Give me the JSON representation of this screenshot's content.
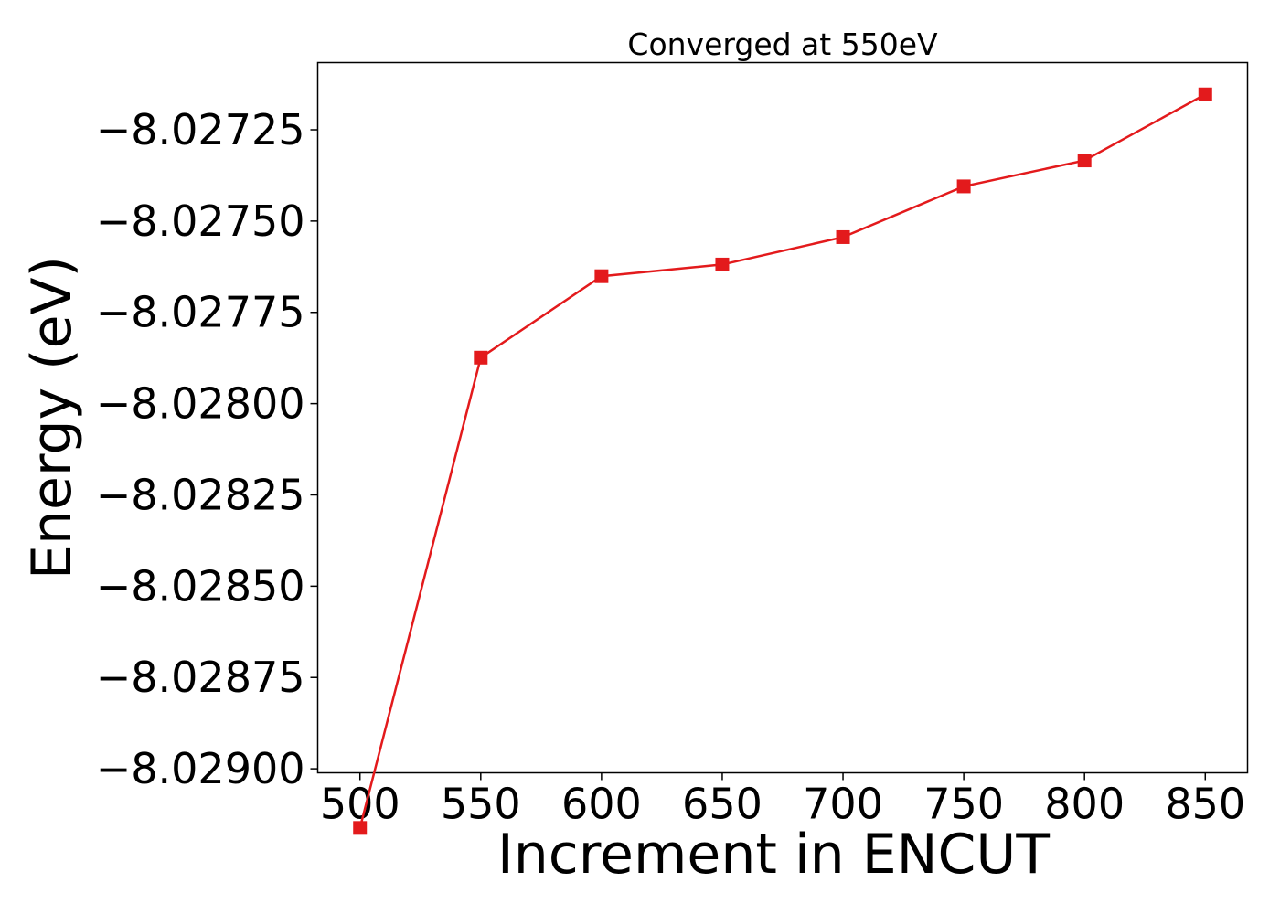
{
  "chart_data": {
    "type": "line",
    "title": "Converged at 550eV",
    "xlabel": "Increment in ENCUT",
    "ylabel": "Energy (eV)",
    "x": [
      500,
      550,
      600,
      650,
      700,
      750,
      800,
      850
    ],
    "series": [
      {
        "values": [
          -8.029162,
          -8.027874,
          -8.027651,
          -8.027619,
          -8.027544,
          -8.027405,
          -8.027334,
          -8.027153
        ],
        "color": "#e31a1c",
        "marker": "square"
      }
    ],
    "xticks": [
      500,
      550,
      600,
      650,
      700,
      750,
      800,
      850
    ],
    "xtick_labels": [
      "500",
      "550",
      "600",
      "650",
      "700",
      "750",
      "800",
      "850"
    ],
    "yticks": [
      -8.029,
      -8.02875,
      -8.0285,
      -8.02825,
      -8.028,
      -8.02775,
      -8.0275,
      -8.02725
    ],
    "ytick_labels": [
      "−8.02900",
      "−8.02875",
      "−8.02850",
      "−8.02825",
      "−8.02800",
      "−8.02775",
      "−8.02750",
      "−8.02725"
    ],
    "xlim": [
      482.5,
      867.5
    ],
    "ylim": [
      -8.029011,
      -8.027066
    ],
    "grid": false,
    "legend": "none"
  }
}
